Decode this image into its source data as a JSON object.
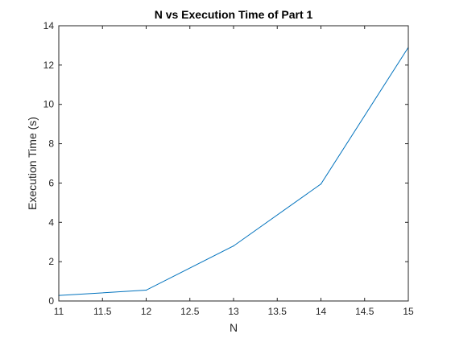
{
  "chart_data": {
    "type": "line",
    "title": "N vs Execution Time of Part 1",
    "xlabel": "N",
    "ylabel": "Execution Time (s)",
    "xlim": [
      11,
      15
    ],
    "ylim": [
      0,
      14
    ],
    "x_ticks": [
      "11",
      "11.5",
      "12",
      "12.5",
      "13",
      "13.5",
      "14",
      "14.5",
      "15"
    ],
    "y_ticks": [
      "0",
      "2",
      "4",
      "6",
      "8",
      "10",
      "12",
      "14"
    ],
    "grid": false,
    "series": [
      {
        "x": [
          11,
          12,
          13,
          14,
          15
        ],
        "values": [
          0.28,
          0.55,
          2.8,
          5.95,
          12.9
        ],
        "color": "#0072BD"
      }
    ]
  },
  "colors": {
    "axis": "#262626",
    "background": "#ffffff"
  }
}
